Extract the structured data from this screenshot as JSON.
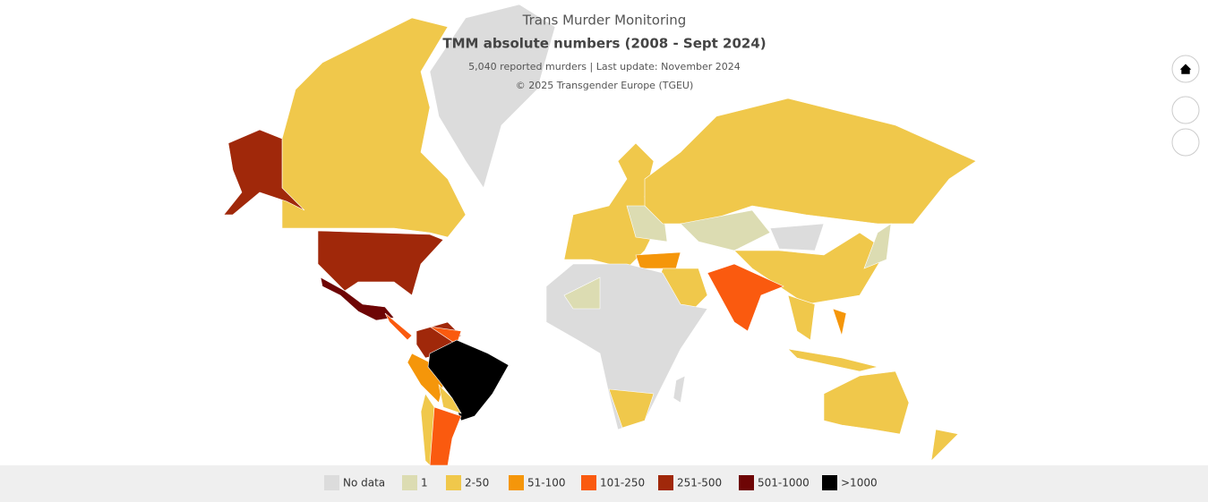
{
  "header": {
    "title": "Trans Murder Monitoring",
    "subtitle": "TMM absolute numbers (2008 - Sept 2024)",
    "note": "5,040 reported murders | Last update: November 2024",
    "credit": "© 2025 Transgender Europe (TGEU)"
  },
  "legend": [
    {
      "label": "No data",
      "color": "#dcdcdc"
    },
    {
      "label": "1",
      "color": "#dcdcb2"
    },
    {
      "label": "2-50",
      "color": "#f0c84b"
    },
    {
      "label": "51-100",
      "color": "#f5960a"
    },
    {
      "label": "101-250",
      "color": "#fa5a0f"
    },
    {
      "label": "251-500",
      "color": "#a0280a"
    },
    {
      "label": "501-1000",
      "color": "#6e0505"
    },
    {
      "label": ">1000",
      "color": "#000000"
    }
  ]
}
